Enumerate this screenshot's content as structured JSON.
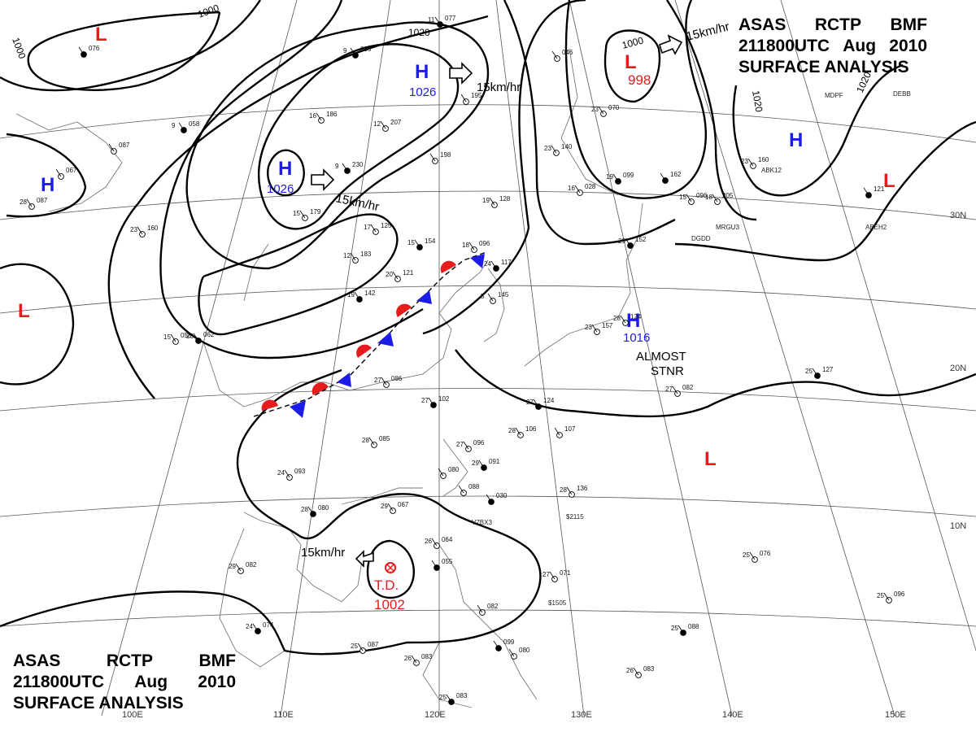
{
  "title": {
    "line1": [
      "ASAS",
      "RCTP",
      "BMF"
    ],
    "line2": [
      "211800UTC",
      "Aug",
      "2010"
    ],
    "line3": "SURFACE ANALYSIS"
  },
  "colors": {
    "high": "#1c1ce6",
    "low": "#e61c1c",
    "warm_front": "#e61c1c",
    "cold_front": "#1c1ce6",
    "isobar": "#000000",
    "grid": "#555555"
  },
  "longitudes": [
    "100E",
    "110E",
    "120E",
    "130E",
    "140E",
    "150E"
  ],
  "latitudes": [
    "30N",
    "20N",
    "10N"
  ],
  "isobar_labels": [
    "1000",
    "1000",
    "1020",
    "1000",
    "1020",
    "1020"
  ],
  "pressure_centers": [
    {
      "type": "H",
      "value": "1026"
    },
    {
      "type": "H",
      "value": "1026"
    },
    {
      "type": "H",
      "value": ""
    },
    {
      "type": "H",
      "value": ""
    },
    {
      "type": "H",
      "value": "1016"
    },
    {
      "type": "L",
      "value": "998"
    },
    {
      "type": "L",
      "value": ""
    },
    {
      "type": "L",
      "value": ""
    },
    {
      "type": "L",
      "value": ""
    },
    {
      "type": "L",
      "value": ""
    }
  ],
  "tropical_depression": {
    "label": "T.D.",
    "value": "1002"
  },
  "motion_labels": [
    "15km/hr",
    "15km/hr",
    "15km/hr",
    "15km/hr",
    "15km/hr"
  ],
  "annotations": [
    "ALMOST",
    "STNR"
  ],
  "stations": [
    {
      "t": "9",
      "p": "096"
    },
    {
      "t": "12",
      "p": "207"
    },
    {
      "t": "16",
      "p": "186"
    },
    {
      "t": "9",
      "p": "230"
    },
    {
      "t": "15",
      "p": "179"
    },
    {
      "t": "17",
      "p": "125"
    },
    {
      "t": "15",
      "p": "154"
    },
    {
      "t": "12",
      "p": "183"
    },
    {
      "t": "20",
      "p": "121"
    },
    {
      "t": "19",
      "p": "142"
    },
    {
      "t": "19",
      "p": "128"
    },
    {
      "t": "18",
      "p": "096"
    },
    {
      "t": "24",
      "p": "117"
    },
    {
      "t": "5",
      "p": "145"
    },
    {
      "t": "27",
      "p": "086"
    },
    {
      "t": "27",
      "p": "102"
    },
    {
      "t": "28",
      "p": "085"
    },
    {
      "t": "24",
      "p": "093"
    },
    {
      "t": "28",
      "p": "080"
    },
    {
      "t": "29",
      "p": "067"
    },
    {
      "t": "27",
      "p": "096"
    },
    {
      "t": "29",
      "p": "091"
    },
    {
      "t": "",
      "p": "080"
    },
    {
      "t": "",
      "p": "088"
    },
    {
      "t": "",
      "p": "030"
    },
    {
      "t": "28",
      "p": "106"
    },
    {
      "t": "",
      "p": "107"
    },
    {
      "t": "27",
      "p": "124"
    },
    {
      "t": "28",
      "p": "136"
    },
    {
      "t": "26",
      "p": "064"
    },
    {
      "t": "",
      "p": "055"
    },
    {
      "t": "27",
      "p": "071"
    },
    {
      "t": "",
      "p": "082"
    },
    {
      "t": "",
      "p": "099"
    },
    {
      "t": "",
      "p": "080"
    },
    {
      "t": "26",
      "p": "083"
    },
    {
      "t": "25",
      "p": "083"
    },
    {
      "t": "25",
      "p": "087"
    },
    {
      "t": "29",
      "p": "082"
    },
    {
      "t": "24",
      "p": "074"
    },
    {
      "t": "25",
      "p": "076"
    },
    {
      "t": "25",
      "p": "096"
    },
    {
      "t": "25",
      "p": "088"
    },
    {
      "t": "26",
      "p": "083"
    },
    {
      "t": "27",
      "p": "082"
    },
    {
      "t": "25",
      "p": "127"
    },
    {
      "t": "28",
      "p": "124"
    },
    {
      "t": "23",
      "p": "157"
    },
    {
      "t": "29",
      "p": "152"
    },
    {
      "t": "23",
      "p": "140"
    },
    {
      "t": "16",
      "p": "028"
    },
    {
      "t": "19",
      "p": "099"
    },
    {
      "t": "23",
      "p": "070"
    },
    {
      "t": "",
      "p": "046"
    },
    {
      "t": "11",
      "p": "077"
    },
    {
      "t": "",
      "p": "195"
    },
    {
      "t": "",
      "p": "198"
    },
    {
      "t": "",
      "p": "121"
    },
    {
      "t": "23",
      "p": "160"
    },
    {
      "t": "18",
      "p": "205"
    },
    {
      "t": "",
      "p": "162"
    },
    {
      "t": "15",
      "p": "096"
    },
    {
      "t": "23",
      "p": "160"
    },
    {
      "t": "9",
      "p": "058"
    },
    {
      "t": "",
      "p": "067"
    },
    {
      "t": "",
      "p": "087"
    },
    {
      "t": "",
      "p": "076"
    },
    {
      "t": "28",
      "p": "087"
    },
    {
      "t": "15",
      "p": "058"
    },
    {
      "t": "23",
      "p": "062"
    },
    {
      "t": "12",
      "p": "061"
    }
  ],
  "ship_ids": [
    "DGDD",
    "MRGU3",
    "ABEH2",
    "ABK12",
    "MDPF",
    "DEBB",
    "V7BX3",
    "$1505",
    "$2115"
  ]
}
